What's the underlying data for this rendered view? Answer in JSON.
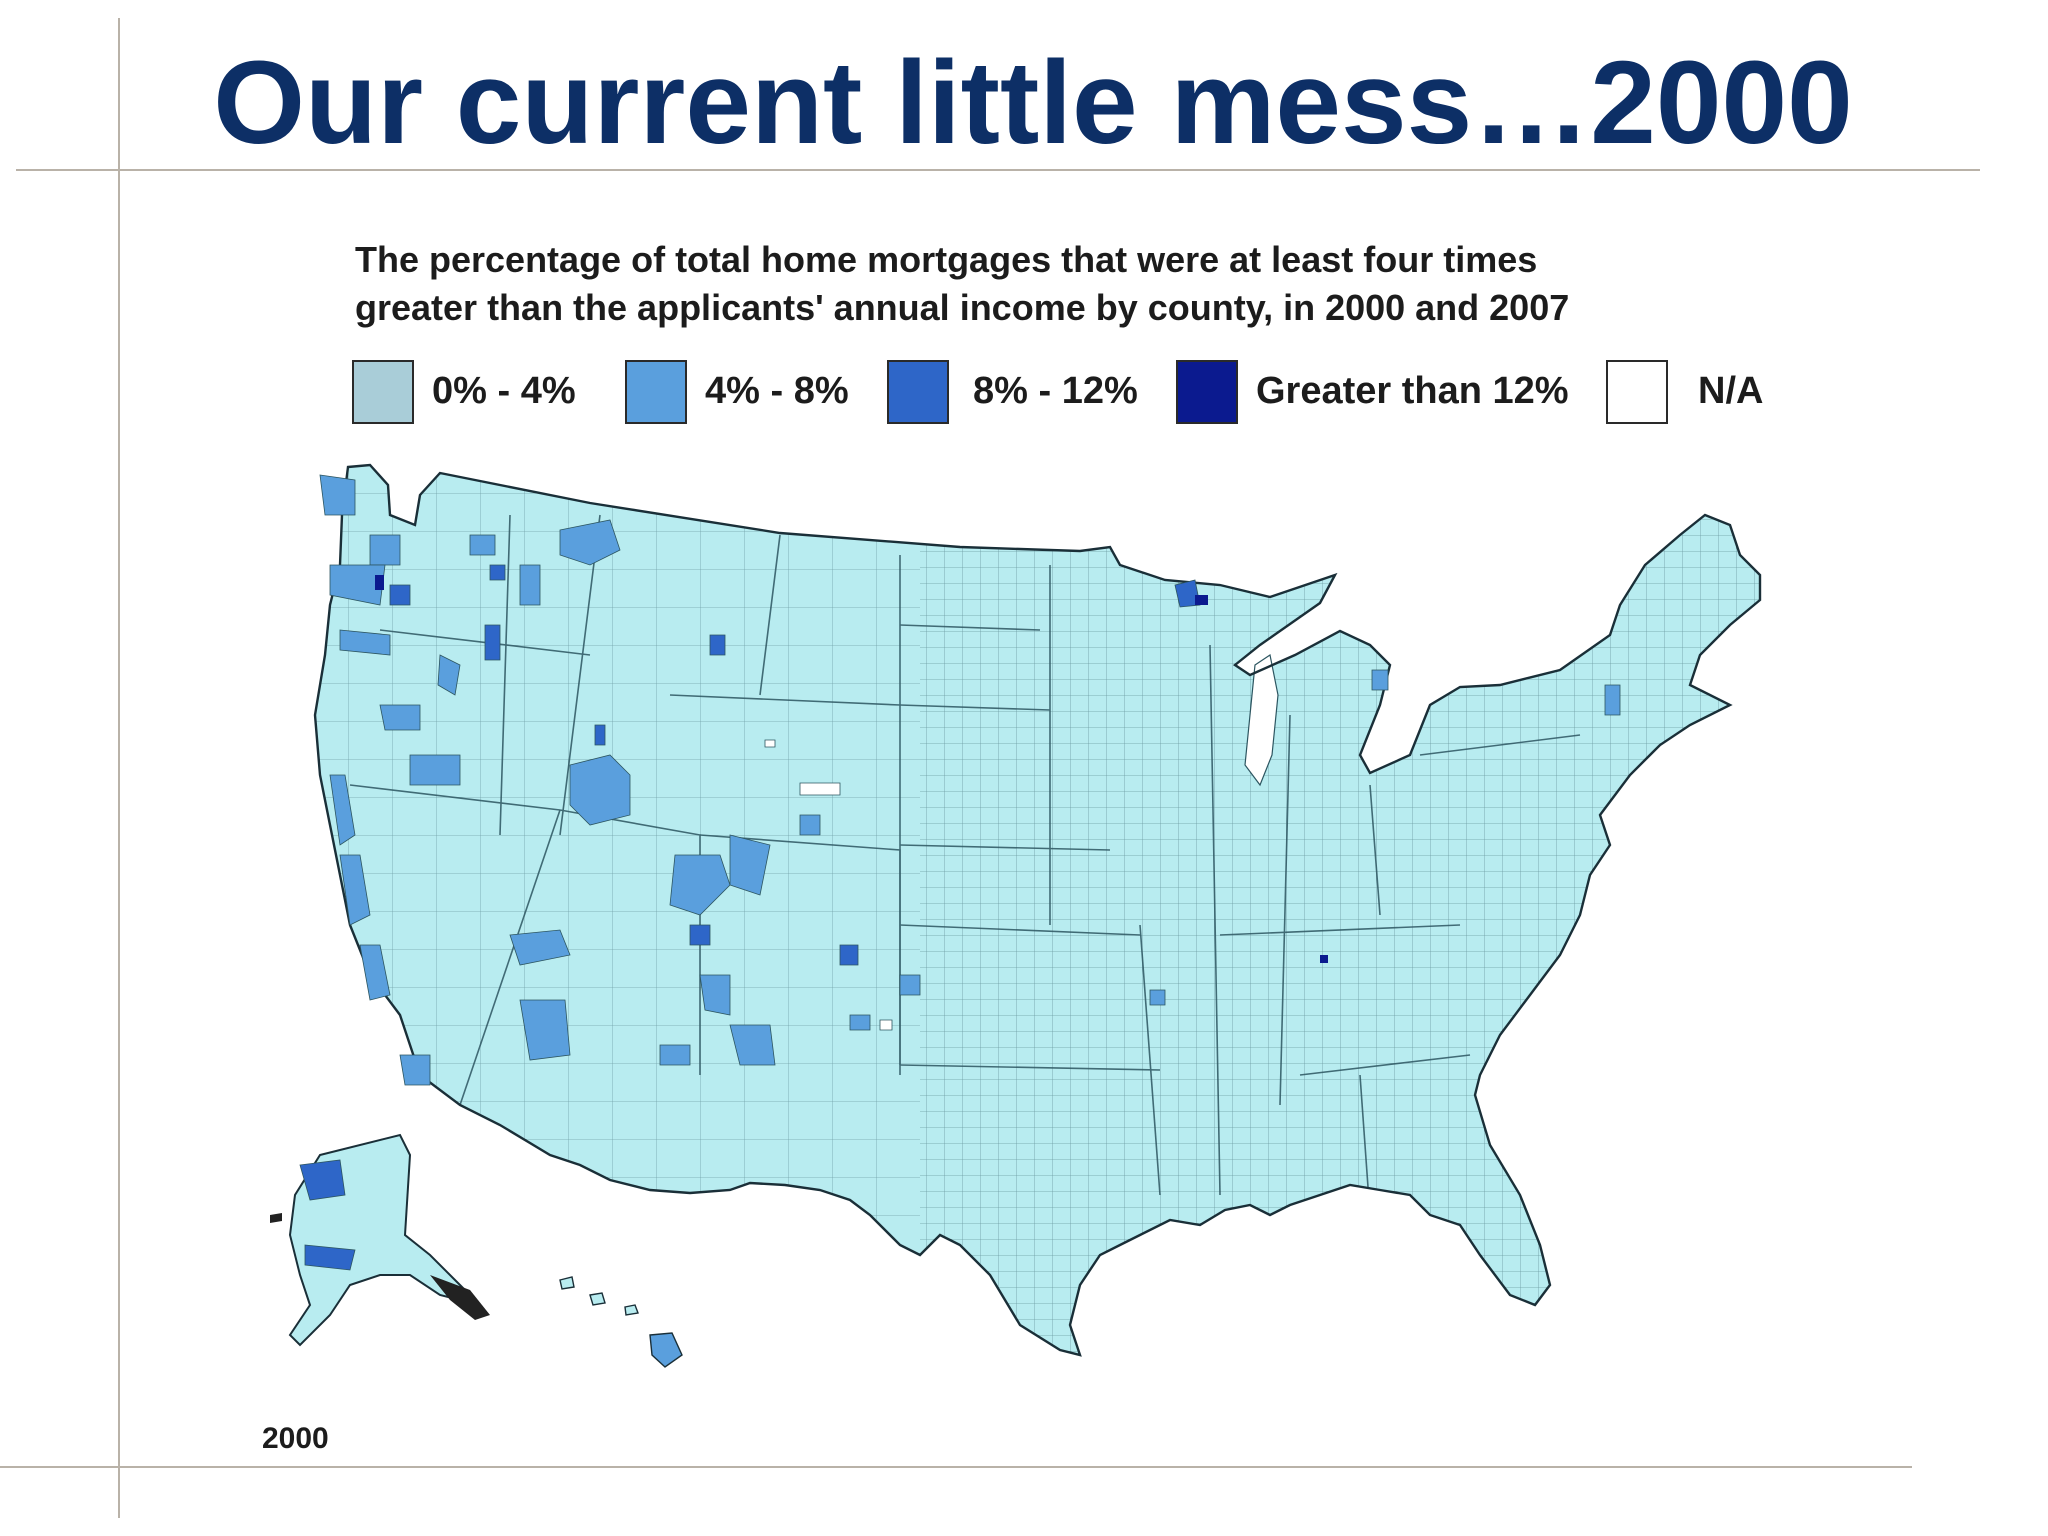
{
  "slide": {
    "title": "Our current little mess…2000"
  },
  "figure": {
    "caption_line1": "The percentage of total home mortgages that were at least four times",
    "caption_line2": "greater than the applicants' annual income by county, in 2000 and 2007",
    "corner_text": "2000",
    "legend": [
      {
        "label": "0% - 4%",
        "color": "#a9cdd8"
      },
      {
        "label": "4% - 8%",
        "color": "#5a9fdd"
      },
      {
        "label": "8% - 12%",
        "color": "#2e66c8"
      },
      {
        "label": "Greater than 12%",
        "color": "#0b1a8f"
      },
      {
        "label": "N/A",
        "color": "#ffffff"
      }
    ]
  },
  "map": {
    "base_fill": "#b8ecf0",
    "county_line": "#2c5560",
    "region": "United States counties (contiguous US, Alaska, Hawaii)"
  }
}
